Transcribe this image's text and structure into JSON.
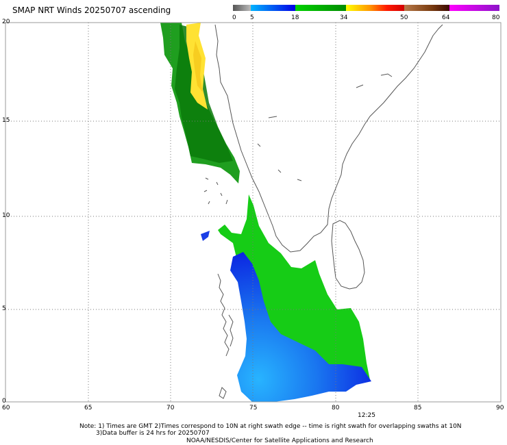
{
  "title": "SMAP NRT Winds 20250707 ascending",
  "colorbar": {
    "segments": [
      {
        "from": 0,
        "to": 5,
        "colors": [
          "#555555",
          "#b8b8b8"
        ]
      },
      {
        "from": 5,
        "to": 18,
        "colors": [
          "#00b4ff",
          "#0000e6"
        ]
      },
      {
        "from": 18,
        "to": 34,
        "colors": [
          "#00d200",
          "#009a00"
        ]
      },
      {
        "from": 34,
        "to": 50,
        "colors": [
          "#ffff00",
          "#ffa000",
          "#ff0000",
          "#dc0000"
        ]
      },
      {
        "from": 50,
        "to": 64,
        "colors": [
          "#b46e3c",
          "#8c4614",
          "#3c0a00"
        ]
      },
      {
        "from": 64,
        "to": 80,
        "colors": [
          "#ff00ff",
          "#8c14c8"
        ]
      }
    ],
    "tick_labels": [
      "0",
      "5",
      "18",
      "34",
      "50",
      "64",
      "80"
    ]
  },
  "map": {
    "lon_range": [
      60,
      90
    ],
    "lat_range": [
      0,
      20
    ],
    "lon_ticks": [
      "60",
      "65",
      "70",
      "75",
      "80",
      "85",
      "90"
    ],
    "lat_ticks": [
      "0",
      "5",
      "10",
      "15",
      "20"
    ],
    "grid": true
  },
  "time_label": "12:25",
  "notes": [
    "Note: 1) Times are GMT 2)Times correspond to 10N at right swath edge -- time is right swath for overlapping swaths at 10N",
    "3)Data buffer is 24 hrs for 20250707",
    "NOAA/NESDIS/Center for Satellite Applications and Research"
  ],
  "swath_regions": [
    {
      "name": "northern swath",
      "color": "#1f9e1f"
    },
    {
      "name": "northern swath core",
      "color": "#0a7a0a"
    },
    {
      "name": "high wind strip",
      "color": "#ffe233"
    },
    {
      "name": "southern swath",
      "color": "#16cc16"
    },
    {
      "name": "southern swath low wind",
      "color": "#1040e6"
    }
  ]
}
